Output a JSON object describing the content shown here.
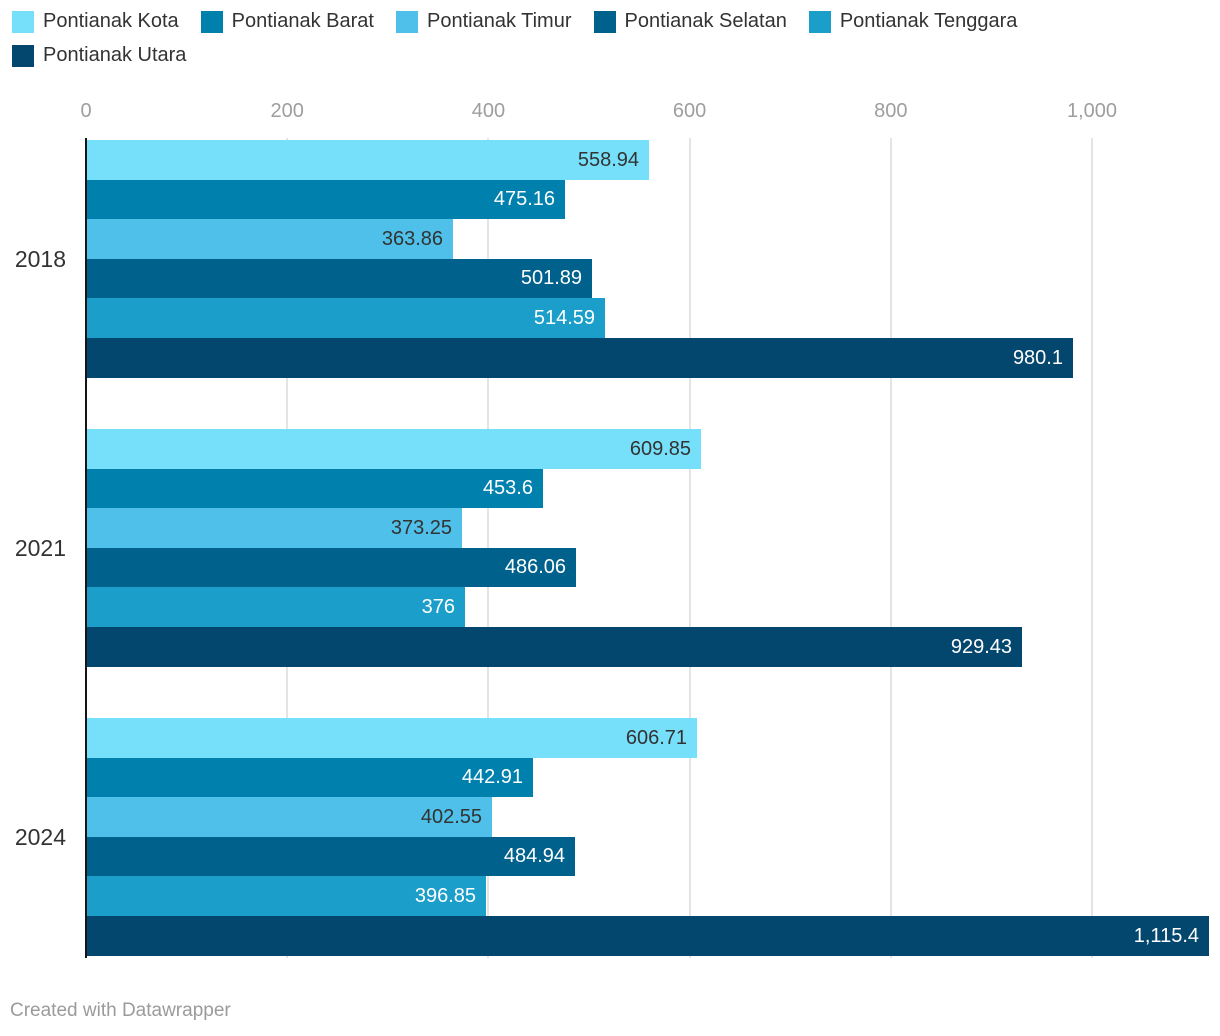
{
  "legend": {
    "items": [
      {
        "label": "Pontianak Kota",
        "color": "#76DFFA"
      },
      {
        "label": "Pontianak Barat",
        "color": "#0081AD"
      },
      {
        "label": "Pontianak Timur",
        "color": "#4EC0EA"
      },
      {
        "label": "Pontianak Selatan",
        "color": "#00618D"
      },
      {
        "label": "Pontianak Tenggara",
        "color": "#1B9FCA"
      },
      {
        "label": "Pontianak Utara",
        "color": "#03476E"
      }
    ]
  },
  "chart_data": {
    "type": "bar",
    "orientation": "horizontal",
    "title": "",
    "xlabel": "",
    "ylabel": "",
    "categories": [
      "2018",
      "2021",
      "2024"
    ],
    "series": [
      {
        "name": "Pontianak Kota",
        "color": "#76DFFA",
        "label_color": "#333333",
        "values": [
          558.94,
          609.85,
          606.71
        ],
        "labels": [
          "558.94",
          "609.85",
          "606.71"
        ]
      },
      {
        "name": "Pontianak Barat",
        "color": "#0081AD",
        "label_color": "#ffffff",
        "values": [
          475.16,
          453.6,
          442.91
        ],
        "labels": [
          "475.16",
          "453.6",
          "442.91"
        ]
      },
      {
        "name": "Pontianak Timur",
        "color": "#4EC0EA",
        "label_color": "#333333",
        "values": [
          363.86,
          373.25,
          402.55
        ],
        "labels": [
          "363.86",
          "373.25",
          "402.55"
        ]
      },
      {
        "name": "Pontianak Selatan",
        "color": "#00618D",
        "label_color": "#ffffff",
        "values": [
          501.89,
          486.06,
          484.94
        ],
        "labels": [
          "501.89",
          "486.06",
          "484.94"
        ]
      },
      {
        "name": "Pontianak Tenggara",
        "color": "#1B9FCA",
        "label_color": "#ffffff",
        "values": [
          514.59,
          376,
          396.85
        ],
        "labels": [
          "514.59",
          "376",
          "396.85"
        ]
      },
      {
        "name": "Pontianak Utara",
        "color": "#03476E",
        "label_color": "#ffffff",
        "values": [
          980.1,
          929.43,
          1115.4
        ],
        "labels": [
          "980.1",
          "929.43",
          "1,115.4"
        ]
      }
    ],
    "x_axis": {
      "ticks": [
        0,
        200,
        400,
        600,
        800,
        1000
      ],
      "tick_labels": [
        "0",
        "200",
        "400",
        "600",
        "800",
        "1,000"
      ],
      "min": 0,
      "max": 1127
    },
    "grid": true,
    "legend_position": "top"
  },
  "footer": {
    "credit": "Created with Datawrapper"
  }
}
